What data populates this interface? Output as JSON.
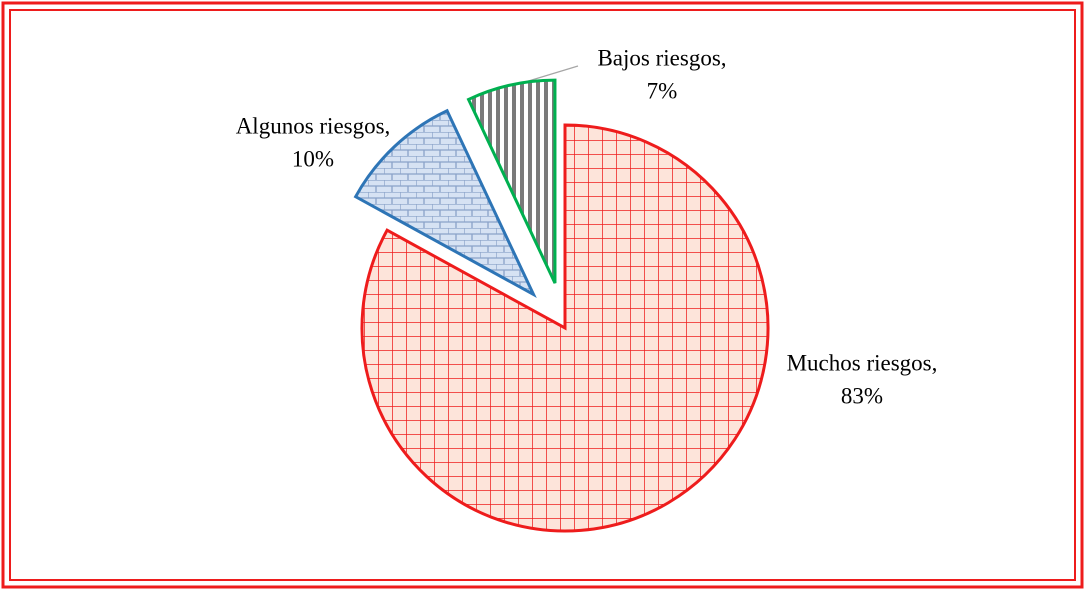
{
  "chart_data": {
    "type": "pie",
    "categories": [
      "Muchos riesgos,",
      "Algunos riesgos,",
      "Bajos riesgos,"
    ],
    "values": [
      83,
      10,
      7
    ],
    "value_labels": [
      "83%",
      "10%",
      "7%"
    ],
    "colors": [
      "#ee1c1c",
      "#2e75b6",
      "#00b050"
    ]
  }
}
